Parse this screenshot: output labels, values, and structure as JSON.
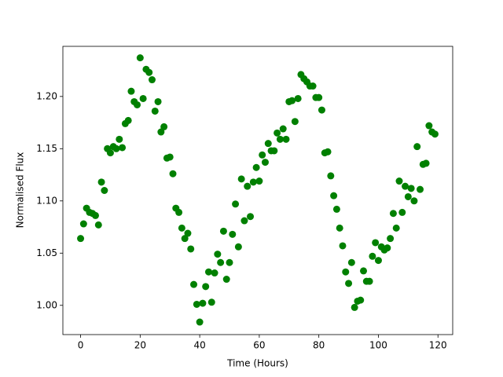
{
  "chart_data": {
    "type": "scatter",
    "xlabel": "Time (Hours)",
    "ylabel": "Normalised Flux",
    "color": "#008000",
    "x": [
      0,
      1,
      2,
      3,
      4,
      5,
      6,
      7,
      8,
      9,
      10,
      11,
      12,
      13,
      14,
      15,
      16,
      17,
      18,
      19,
      20,
      21,
      22,
      23,
      24,
      25,
      26,
      27,
      28,
      29,
      30,
      31,
      32,
      33,
      34,
      35,
      36,
      37,
      38,
      39,
      40,
      41,
      42,
      43,
      44,
      45,
      46,
      47,
      48,
      49,
      50,
      51,
      52,
      53,
      54,
      55,
      56,
      57,
      58,
      59,
      60,
      61,
      62,
      63,
      64,
      65,
      66,
      67,
      68,
      69,
      70,
      71,
      72,
      73,
      74,
      75,
      76,
      77,
      78,
      79,
      80,
      81,
      82,
      83,
      84,
      85,
      86,
      87,
      88,
      89,
      90,
      91,
      92,
      93,
      94,
      95,
      96,
      97,
      98,
      99,
      100,
      101,
      102,
      103,
      104,
      105,
      106,
      107,
      108,
      109,
      110,
      111,
      112,
      113,
      114,
      115,
      116,
      117,
      118,
      119
    ],
    "values": [
      1.064,
      1.078,
      1.093,
      1.089,
      1.088,
      1.086,
      1.077,
      1.118,
      1.11,
      1.15,
      1.146,
      1.152,
      1.15,
      1.159,
      1.151,
      1.174,
      1.177,
      1.205,
      1.195,
      1.192,
      1.237,
      1.198,
      1.226,
      1.223,
      1.216,
      1.186,
      1.195,
      1.166,
      1.171,
      1.141,
      1.142,
      1.126,
      1.093,
      1.089,
      1.074,
      1.064,
      1.069,
      1.054,
      1.02,
      1.001,
      0.984,
      1.002,
      1.018,
      1.032,
      1.003,
      1.031,
      1.049,
      1.041,
      1.071,
      1.025,
      1.041,
      1.068,
      1.097,
      1.056,
      1.121,
      1.081,
      1.114,
      1.085,
      1.118,
      1.132,
      1.119,
      1.144,
      1.137,
      1.155,
      1.148,
      1.148,
      1.165,
      1.159,
      1.169,
      1.159,
      1.195,
      1.196,
      1.176,
      1.198,
      1.221,
      1.217,
      1.214,
      1.21,
      1.21,
      1.199,
      1.199,
      1.187,
      1.146,
      1.147,
      1.124,
      1.105,
      1.092,
      1.074,
      1.057,
      1.032,
      1.021,
      1.041,
      0.998,
      1.004,
      1.005,
      1.033,
      1.023,
      1.023,
      1.047,
      1.06,
      1.043,
      1.056,
      1.053,
      1.055,
      1.064,
      1.088,
      1.074,
      1.119,
      1.089,
      1.114,
      1.104,
      1.112,
      1.1,
      1.152,
      1.111,
      1.135,
      1.136,
      1.172,
      1.166,
      1.164
    ],
    "xlim": [
      -5.95,
      124.95
    ],
    "xticks": [
      0,
      20,
      40,
      60,
      80,
      100,
      120
    ],
    "ylim": [
      0.972,
      1.248
    ],
    "yticks": [
      {
        "value": 1,
        "label": "1.00"
      },
      1.05,
      {
        "value": 1.1,
        "label": "1.10"
      },
      1.15,
      {
        "value": 1.2,
        "label": "1.20"
      }
    ]
  }
}
